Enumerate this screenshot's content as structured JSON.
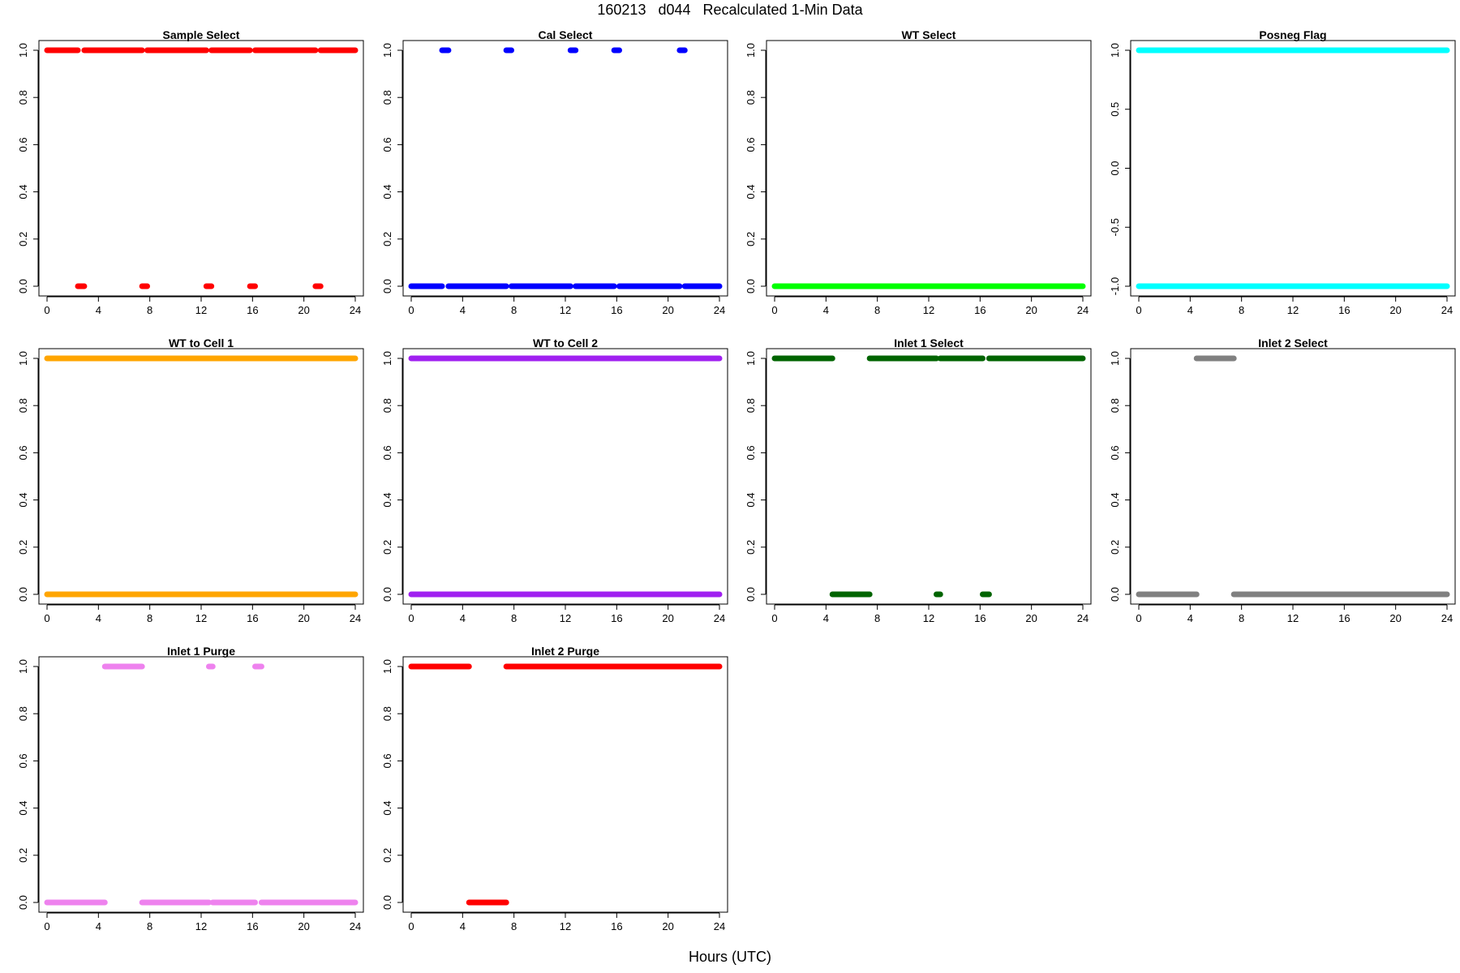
{
  "title": "160213   d044   Recalculated 1-Min Data",
  "xlabel": "Hours (UTC)",
  "chart_data": [
    {
      "type": "scatter",
      "title": "Sample Select",
      "color": "#ff0000",
      "xlim": [
        0,
        24
      ],
      "ylim": [
        0,
        1
      ],
      "xticks": [
        0,
        4,
        8,
        12,
        16,
        20,
        24
      ],
      "yticks": [
        0,
        0.2,
        0.4,
        0.6,
        0.8,
        1.0
      ],
      "ytick_labels": [
        "0.0",
        "0.2",
        "0.4",
        "0.6",
        "0.8",
        "1.0"
      ],
      "segments": [
        {
          "y": 1,
          "x": [
            0.0,
            2.4
          ]
        },
        {
          "y": 1,
          "x": [
            2.9,
            7.4
          ]
        },
        {
          "y": 1,
          "x": [
            7.8,
            12.4
          ]
        },
        {
          "y": 1,
          "x": [
            12.8,
            15.8
          ]
        },
        {
          "y": 1,
          "x": [
            16.2,
            20.9
          ]
        },
        {
          "y": 1,
          "x": [
            21.3,
            24.0
          ]
        },
        {
          "y": 0,
          "x": [
            2.4,
            2.9
          ]
        },
        {
          "y": 0,
          "x": [
            7.4,
            7.8
          ]
        },
        {
          "y": 0,
          "x": [
            12.4,
            12.8
          ]
        },
        {
          "y": 0,
          "x": [
            15.8,
            16.2
          ]
        },
        {
          "y": 0,
          "x": [
            20.9,
            21.3
          ]
        }
      ]
    },
    {
      "type": "scatter",
      "title": "Cal Select",
      "color": "#0000ff",
      "xlim": [
        0,
        24
      ],
      "ylim": [
        0,
        1
      ],
      "xticks": [
        0,
        4,
        8,
        12,
        16,
        20,
        24
      ],
      "yticks": [
        0,
        0.2,
        0.4,
        0.6,
        0.8,
        1.0
      ],
      "ytick_labels": [
        "0.0",
        "0.2",
        "0.4",
        "0.6",
        "0.8",
        "1.0"
      ],
      "segments": [
        {
          "y": 0,
          "x": [
            0.0,
            2.4
          ]
        },
        {
          "y": 0,
          "x": [
            2.9,
            7.4
          ]
        },
        {
          "y": 0,
          "x": [
            7.8,
            12.4
          ]
        },
        {
          "y": 0,
          "x": [
            12.8,
            15.8
          ]
        },
        {
          "y": 0,
          "x": [
            16.2,
            20.9
          ]
        },
        {
          "y": 0,
          "x": [
            21.3,
            24.0
          ]
        },
        {
          "y": 1,
          "x": [
            2.4,
            2.9
          ]
        },
        {
          "y": 1,
          "x": [
            7.4,
            7.8
          ]
        },
        {
          "y": 1,
          "x": [
            12.4,
            12.8
          ]
        },
        {
          "y": 1,
          "x": [
            15.8,
            16.2
          ]
        },
        {
          "y": 1,
          "x": [
            20.9,
            21.3
          ]
        }
      ]
    },
    {
      "type": "scatter",
      "title": "WT Select",
      "color": "#00ff00",
      "xlim": [
        0,
        24
      ],
      "ylim": [
        0,
        1
      ],
      "xticks": [
        0,
        4,
        8,
        12,
        16,
        20,
        24
      ],
      "yticks": [
        0,
        0.2,
        0.4,
        0.6,
        0.8,
        1.0
      ],
      "ytick_labels": [
        "0.0",
        "0.2",
        "0.4",
        "0.6",
        "0.8",
        "1.0"
      ],
      "segments": [
        {
          "y": 0,
          "x": [
            0.0,
            24.0
          ]
        }
      ]
    },
    {
      "type": "scatter",
      "title": "Posneg Flag",
      "color": "#00ffff",
      "xlim": [
        0,
        24
      ],
      "ylim": [
        -1,
        1
      ],
      "xticks": [
        0,
        4,
        8,
        12,
        16,
        20,
        24
      ],
      "yticks": [
        -1,
        -0.5,
        0,
        0.5,
        1.0
      ],
      "ytick_labels": [
        "-1.0",
        "-0.5",
        "0.0",
        "0.5",
        "1.0"
      ],
      "segments": [
        {
          "y": 1,
          "x": [
            0.0,
            24.0
          ]
        },
        {
          "y": -1,
          "x": [
            0.0,
            24.0
          ]
        }
      ]
    },
    {
      "type": "scatter",
      "title": "WT to Cell 1",
      "color": "#ffa500",
      "xlim": [
        0,
        24
      ],
      "ylim": [
        0,
        1
      ],
      "xticks": [
        0,
        4,
        8,
        12,
        16,
        20,
        24
      ],
      "yticks": [
        0,
        0.2,
        0.4,
        0.6,
        0.8,
        1.0
      ],
      "ytick_labels": [
        "0.0",
        "0.2",
        "0.4",
        "0.6",
        "0.8",
        "1.0"
      ],
      "segments": [
        {
          "y": 1,
          "x": [
            0.0,
            24.0
          ]
        },
        {
          "y": 0,
          "x": [
            0.0,
            24.0
          ]
        }
      ]
    },
    {
      "type": "scatter",
      "title": "WT to Cell 2",
      "color": "#a020f0",
      "xlim": [
        0,
        24
      ],
      "ylim": [
        0,
        1
      ],
      "xticks": [
        0,
        4,
        8,
        12,
        16,
        20,
        24
      ],
      "yticks": [
        0,
        0.2,
        0.4,
        0.6,
        0.8,
        1.0
      ],
      "ytick_labels": [
        "0.0",
        "0.2",
        "0.4",
        "0.6",
        "0.8",
        "1.0"
      ],
      "segments": [
        {
          "y": 1,
          "x": [
            0.0,
            24.0
          ]
        },
        {
          "y": 0,
          "x": [
            0.0,
            24.0
          ]
        }
      ]
    },
    {
      "type": "scatter",
      "title": "Inlet 1 Select",
      "color": "#006400",
      "xlim": [
        0,
        24
      ],
      "ylim": [
        0,
        1
      ],
      "xticks": [
        0,
        4,
        8,
        12,
        16,
        20,
        24
      ],
      "yticks": [
        0,
        0.2,
        0.4,
        0.6,
        0.8,
        1.0
      ],
      "ytick_labels": [
        "0.0",
        "0.2",
        "0.4",
        "0.6",
        "0.8",
        "1.0"
      ],
      "segments": [
        {
          "y": 1,
          "x": [
            0.0,
            4.5
          ]
        },
        {
          "y": 1,
          "x": [
            7.4,
            12.6
          ]
        },
        {
          "y": 1,
          "x": [
            12.9,
            16.2
          ]
        },
        {
          "y": 1,
          "x": [
            16.7,
            24.0
          ]
        },
        {
          "y": 0,
          "x": [
            4.5,
            7.4
          ]
        },
        {
          "y": 0,
          "x": [
            12.6,
            12.9
          ]
        },
        {
          "y": 0,
          "x": [
            16.2,
            16.7
          ]
        }
      ]
    },
    {
      "type": "scatter",
      "title": "Inlet 2 Select",
      "color": "#808080",
      "xlim": [
        0,
        24
      ],
      "ylim": [
        0,
        1
      ],
      "xticks": [
        0,
        4,
        8,
        12,
        16,
        20,
        24
      ],
      "yticks": [
        0,
        0.2,
        0.4,
        0.6,
        0.8,
        1.0
      ],
      "ytick_labels": [
        "0.0",
        "0.2",
        "0.4",
        "0.6",
        "0.8",
        "1.0"
      ],
      "segments": [
        {
          "y": 0,
          "x": [
            0.0,
            4.5
          ]
        },
        {
          "y": 0,
          "x": [
            7.4,
            24.0
          ]
        },
        {
          "y": 1,
          "x": [
            4.5,
            7.4
          ]
        }
      ]
    },
    {
      "type": "scatter",
      "title": "Inlet 1 Purge",
      "color": "#ee82ee",
      "xlim": [
        0,
        24
      ],
      "ylim": [
        0,
        1
      ],
      "xticks": [
        0,
        4,
        8,
        12,
        16,
        20,
        24
      ],
      "yticks": [
        0,
        0.2,
        0.4,
        0.6,
        0.8,
        1.0
      ],
      "ytick_labels": [
        "0.0",
        "0.2",
        "0.4",
        "0.6",
        "0.8",
        "1.0"
      ],
      "segments": [
        {
          "y": 0,
          "x": [
            0.0,
            4.5
          ]
        },
        {
          "y": 0,
          "x": [
            7.4,
            12.6
          ]
        },
        {
          "y": 0,
          "x": [
            12.9,
            16.2
          ]
        },
        {
          "y": 0,
          "x": [
            16.7,
            24.0
          ]
        },
        {
          "y": 1,
          "x": [
            4.5,
            7.4
          ]
        },
        {
          "y": 1,
          "x": [
            12.6,
            12.9
          ]
        },
        {
          "y": 1,
          "x": [
            16.2,
            16.7
          ]
        }
      ]
    },
    {
      "type": "scatter",
      "title": "Inlet 2 Purge",
      "color": "#ff0000",
      "xlim": [
        0,
        24
      ],
      "ylim": [
        0,
        1
      ],
      "xticks": [
        0,
        4,
        8,
        12,
        16,
        20,
        24
      ],
      "yticks": [
        0,
        0.2,
        0.4,
        0.6,
        0.8,
        1.0
      ],
      "ytick_labels": [
        "0.0",
        "0.2",
        "0.4",
        "0.6",
        "0.8",
        "1.0"
      ],
      "segments": [
        {
          "y": 1,
          "x": [
            0.0,
            4.5
          ]
        },
        {
          "y": 1,
          "x": [
            7.4,
            24.0
          ]
        },
        {
          "y": 0,
          "x": [
            4.5,
            7.4
          ]
        }
      ]
    }
  ]
}
